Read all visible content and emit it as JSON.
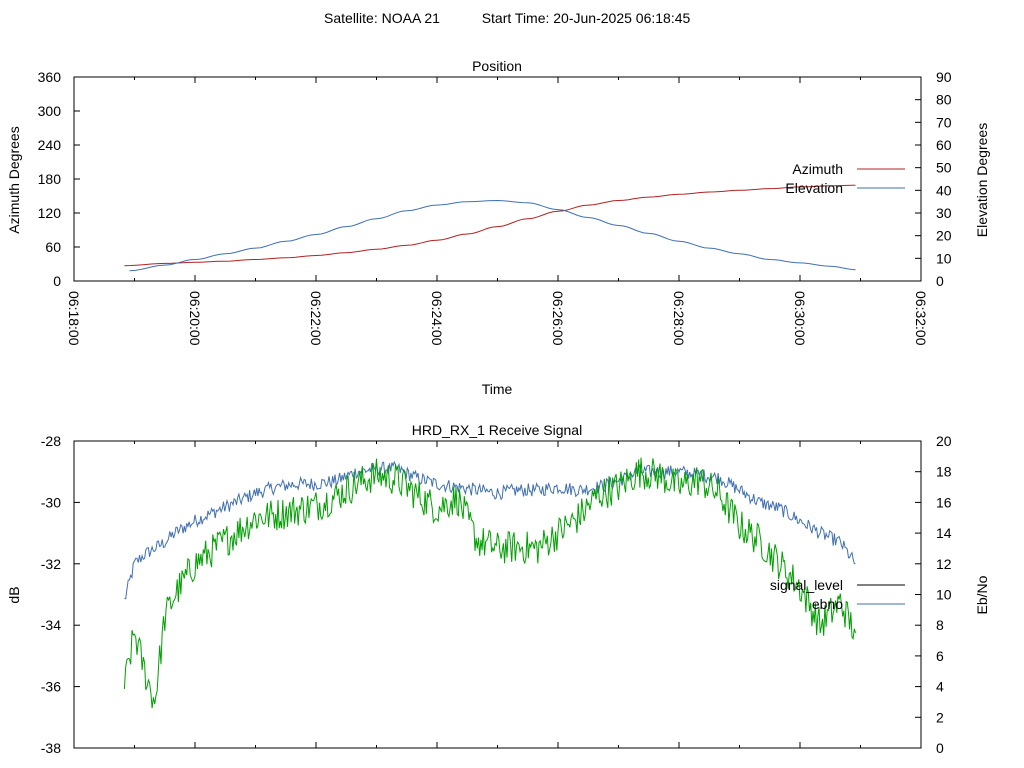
{
  "header": {
    "satellite": "Satellite: NOAA 21",
    "start_time": "Start Time: 20-Jun-2025 06:18:45"
  },
  "chart_data": [
    {
      "type": "line",
      "title": "Position",
      "xlabel": "Time",
      "ylabel": "Azimuth Degrees",
      "y2label": "Elevation Degrees",
      "xlim": [
        "06:18:00",
        "06:32:00"
      ],
      "ylim": [
        0,
        360
      ],
      "y2lim": [
        0,
        90
      ],
      "x_ticks": [
        "06:18:00",
        "06:20:00",
        "06:22:00",
        "06:24:00",
        "06:26:00",
        "06:28:00",
        "06:30:00",
        "06:32:00"
      ],
      "y_ticks": [
        0,
        60,
        120,
        180,
        240,
        300,
        360
      ],
      "y2_ticks": [
        0,
        10,
        20,
        30,
        40,
        50,
        60,
        70,
        80,
        90
      ],
      "legend_position": "right",
      "series": [
        {
          "name": "Azimuth",
          "axis": "y",
          "color": "#b22222",
          "x": [
            "06:18:50",
            "06:19:30",
            "06:20:00",
            "06:20:30",
            "06:21:00",
            "06:21:30",
            "06:22:00",
            "06:22:30",
            "06:23:00",
            "06:23:30",
            "06:24:00",
            "06:24:30",
            "06:25:00",
            "06:25:30",
            "06:26:00",
            "06:26:30",
            "06:27:00",
            "06:27:30",
            "06:28:00",
            "06:28:30",
            "06:29:00",
            "06:29:30",
            "06:30:00",
            "06:30:30",
            "06:30:55"
          ],
          "values": [
            27,
            31,
            33,
            35,
            38,
            41,
            45,
            50,
            56,
            63,
            72,
            83,
            96,
            110,
            123,
            134,
            142,
            148,
            153,
            157,
            160,
            163,
            166,
            168,
            169
          ]
        },
        {
          "name": "Elevation",
          "axis": "y2",
          "color": "#4070b0",
          "x": [
            "06:18:55",
            "06:19:30",
            "06:20:00",
            "06:20:30",
            "06:21:00",
            "06:21:30",
            "06:22:00",
            "06:22:30",
            "06:23:00",
            "06:23:30",
            "06:24:00",
            "06:24:30",
            "06:25:00",
            "06:25:30",
            "06:26:00",
            "06:26:30",
            "06:27:00",
            "06:27:30",
            "06:28:00",
            "06:28:30",
            "06:29:00",
            "06:29:30",
            "06:30:00",
            "06:30:30",
            "06:30:55"
          ],
          "values": [
            4.5,
            7,
            9.5,
            12,
            14.5,
            17.5,
            20.5,
            24,
            27.5,
            31,
            33.5,
            35,
            35.5,
            34.5,
            31.5,
            28,
            24.5,
            21,
            17.5,
            14.5,
            12,
            9.5,
            8,
            6.5,
            5
          ]
        }
      ]
    },
    {
      "type": "line",
      "title": "HRD_RX_1 Receive Signal",
      "xlabel": "",
      "ylabel": "dB",
      "y2label": "Eb/No",
      "xlim": [
        "06:18:00",
        "06:32:00"
      ],
      "ylim": [
        -38,
        -28
      ],
      "y2lim": [
        0,
        20
      ],
      "y_ticks": [
        -38,
        -36,
        -34,
        -32,
        -30,
        -28
      ],
      "y2_ticks": [
        0,
        2,
        4,
        6,
        8,
        10,
        12,
        14,
        16,
        18,
        20
      ],
      "legend_position": "right",
      "series": [
        {
          "name": "signal_level",
          "legend_color": "#000000",
          "axis": "y",
          "color": "#4070b0",
          "x": [
            "06:18:50",
            "06:19:00",
            "06:19:10",
            "06:19:20",
            "06:19:30",
            "06:19:40",
            "06:20:00",
            "06:20:20",
            "06:20:40",
            "06:21:00",
            "06:21:20",
            "06:21:40",
            "06:22:00",
            "06:22:20",
            "06:22:40",
            "06:23:00",
            "06:23:20",
            "06:23:40",
            "06:24:00",
            "06:24:20",
            "06:24:40",
            "06:25:00",
            "06:25:20",
            "06:25:40",
            "06:26:00",
            "06:26:20",
            "06:26:40",
            "06:27:00",
            "06:27:20",
            "06:27:40",
            "06:28:00",
            "06:28:20",
            "06:28:40",
            "06:29:00",
            "06:29:20",
            "06:29:40",
            "06:30:00",
            "06:30:20",
            "06:30:40",
            "06:30:55"
          ],
          "values": [
            -33.2,
            -32.0,
            -31.7,
            -31.5,
            -31.3,
            -31.0,
            -30.6,
            -30.3,
            -30.0,
            -29.7,
            -29.5,
            -29.4,
            -29.4,
            -29.3,
            -29.0,
            -28.9,
            -28.9,
            -29.2,
            -29.4,
            -29.5,
            -29.6,
            -29.7,
            -29.6,
            -29.6,
            -29.5,
            -29.6,
            -29.5,
            -29.3,
            -29.0,
            -29.0,
            -29.0,
            -29.1,
            -29.2,
            -29.6,
            -30.0,
            -30.2,
            -30.6,
            -31.0,
            -31.3,
            -32.0
          ]
        },
        {
          "name": "ebno",
          "legend_color": "#4070b0",
          "axis": "y2",
          "color": "#00a000",
          "x": [
            "06:18:50",
            "06:19:00",
            "06:19:10",
            "06:19:20",
            "06:19:30",
            "06:19:40",
            "06:20:00",
            "06:20:20",
            "06:20:40",
            "06:21:00",
            "06:21:20",
            "06:21:40",
            "06:22:00",
            "06:22:20",
            "06:22:40",
            "06:23:00",
            "06:23:20",
            "06:23:40",
            "06:24:00",
            "06:24:20",
            "06:24:40",
            "06:25:00",
            "06:25:20",
            "06:25:40",
            "06:26:00",
            "06:26:20",
            "06:26:40",
            "06:27:00",
            "06:27:20",
            "06:27:40",
            "06:28:00",
            "06:28:20",
            "06:28:40",
            "06:29:00",
            "06:29:20",
            "06:29:40",
            "06:30:00",
            "06:30:20",
            "06:30:40",
            "06:30:55"
          ],
          "values": [
            4.0,
            7.5,
            5.0,
            3.0,
            8.5,
            10.0,
            12.0,
            13.0,
            14.0,
            15.0,
            15.2,
            15.5,
            15.8,
            16.4,
            17.2,
            17.8,
            17.5,
            16.5,
            15.6,
            16.3,
            13.5,
            13.0,
            13.1,
            13.0,
            14.0,
            15.0,
            16.5,
            17.0,
            18.0,
            17.8,
            17.0,
            17.5,
            16.5,
            14.5,
            13.5,
            12.0,
            10.5,
            8.0,
            9.5,
            7.5
          ]
        }
      ]
    }
  ]
}
